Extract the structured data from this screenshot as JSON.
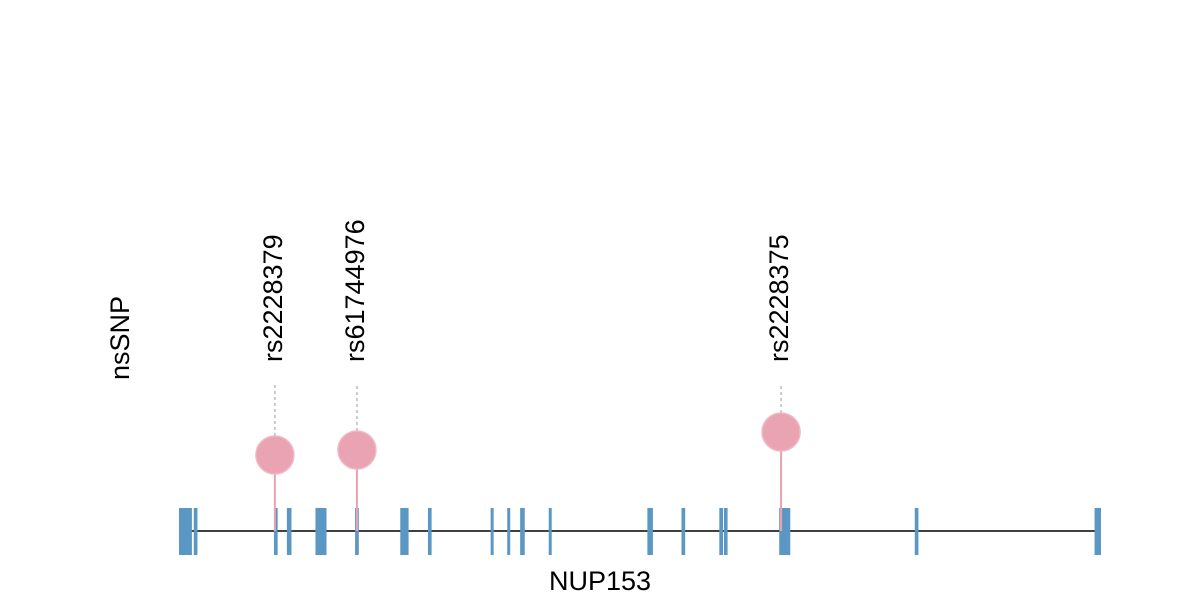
{
  "chart_data": {
    "type": "lollipop",
    "gene": "NUP153",
    "ylabel": "nsSNP",
    "xlim": [
      0,
      1000
    ],
    "ylim": [
      0,
      100
    ],
    "exon_color": "#5b97c3",
    "snp_color": "#e9a3b2",
    "exons": [
      [
        0,
        14
      ],
      [
        16,
        20
      ],
      [
        103,
        107
      ],
      [
        117,
        122
      ],
      [
        148,
        160
      ],
      [
        191,
        195
      ],
      [
        240,
        249
      ],
      [
        270,
        274
      ],
      [
        338,
        341
      ],
      [
        356,
        359
      ],
      [
        370,
        375
      ],
      [
        401,
        404
      ],
      [
        508,
        514
      ],
      [
        545,
        549
      ],
      [
        586,
        590
      ],
      [
        591,
        595
      ],
      [
        651,
        663
      ],
      [
        798,
        802
      ],
      [
        993,
        1000
      ]
    ],
    "snps": [
      {
        "name": "rs2228379",
        "x": 104,
        "value": 76
      },
      {
        "name": "rs61744976",
        "x": 193,
        "value": 81
      },
      {
        "name": "rs2228375",
        "x": 653,
        "value": 99
      }
    ]
  }
}
